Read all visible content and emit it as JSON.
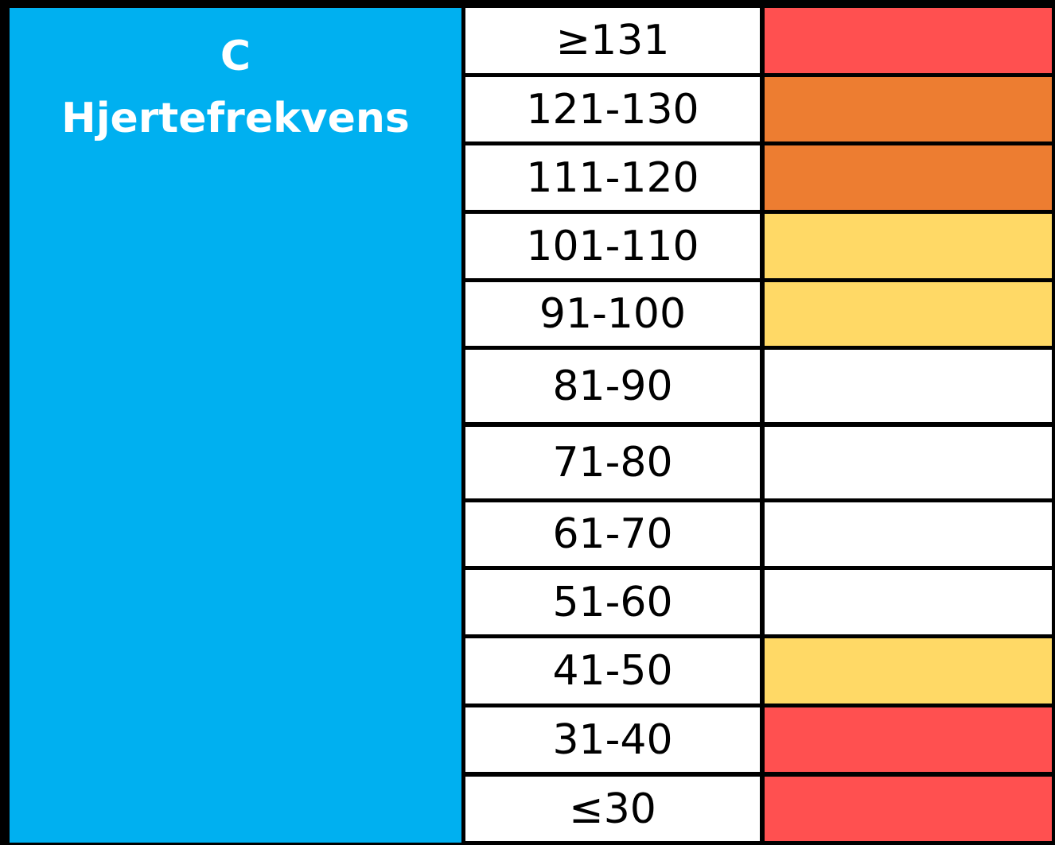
{
  "header": {
    "code": "C",
    "title": "Hjertefrekvens"
  },
  "rows": [
    {
      "range": "≥131",
      "color": "#ff5050"
    },
    {
      "range": "121-130",
      "color": "#ed7d31"
    },
    {
      "range": "111-120",
      "color": "#ed7d31"
    },
    {
      "range": "101-110",
      "color": "#ffd966"
    },
    {
      "range": "91-100",
      "color": "#ffd966"
    },
    {
      "range": "81-90",
      "color": "#ffffff"
    },
    {
      "range": "71-80",
      "color": "#ffffff"
    },
    {
      "range": "61-70",
      "color": "#ffffff"
    },
    {
      "range": "51-60",
      "color": "#ffffff"
    },
    {
      "range": "41-50",
      "color": "#ffd966"
    },
    {
      "range": "31-40",
      "color": "#ff5050"
    },
    {
      "range": "≤30",
      "color": "#ff5050"
    }
  ]
}
